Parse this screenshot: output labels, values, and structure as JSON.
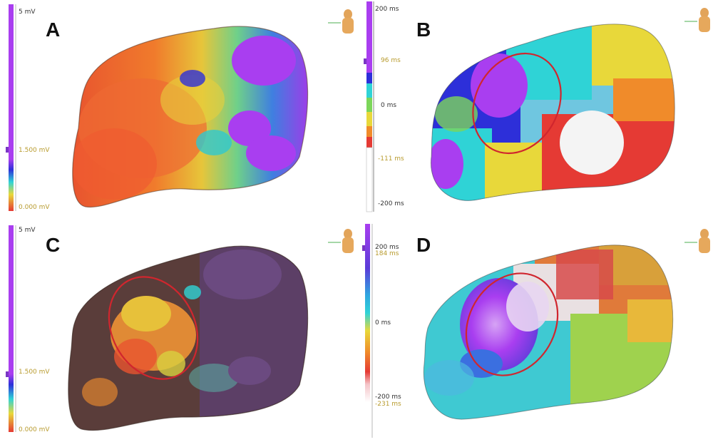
{
  "panels": {
    "a": {
      "letter": "A",
      "scale": {
        "top": "5 mV",
        "mid": "1.500 mV",
        "bottom": "0.000 mV"
      }
    },
    "b": {
      "letter": "B",
      "scale": {
        "top": "200 ms",
        "upper": "96 ms",
        "mid": "0 ms",
        "lower": "-111 ms",
        "bottom": "-200 ms"
      }
    },
    "c": {
      "letter": "C",
      "scale": {
        "top": "5 mV",
        "mid": "1.500 mV",
        "bottom": "0.000 mV"
      }
    },
    "d": {
      "letter": "D",
      "scale": {
        "top": "200 ms",
        "upper": "184 ms",
        "mid": "0 ms",
        "lower": "-200 ms",
        "bottom": "-231 ms"
      }
    }
  },
  "colors": {
    "purple": "#a93ef0",
    "blue": "#2d2fd9",
    "cyan": "#2fd3d6",
    "green": "#7cd65a",
    "yellow": "#e8d83a",
    "orange": "#f08b2a",
    "red": "#e53a34",
    "white": "#f4f4f4",
    "annotation_ring": "#d0262e"
  }
}
